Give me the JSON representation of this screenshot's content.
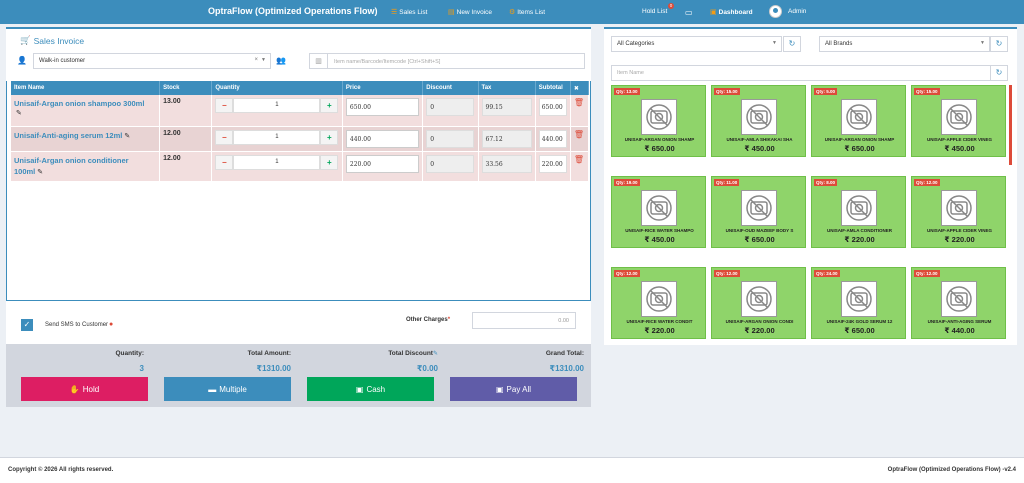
{
  "navbar": {
    "brand": "OptraFlow (Optimized Operations Flow)",
    "links": [
      {
        "label": "Sales List",
        "icon": "list-icon"
      },
      {
        "label": "New Invoice",
        "icon": "invoice-icon"
      },
      {
        "label": "Items List",
        "icon": "items-icon"
      }
    ],
    "hold_list": "Hold List",
    "hold_count": "0",
    "dashboard": "Dashboard",
    "user": "Admin"
  },
  "invoice": {
    "title": "Sales Invoice",
    "customer": "Walk-in customer",
    "clear_symbol": "×",
    "item_search_placeholder": "Item name/Barcode/Itemcode [Ctrl+Shift+S]",
    "columns": [
      "Item Name",
      "Stock",
      "Quantity",
      "Price",
      "Discount",
      "Tax",
      "Subtotal",
      "✖"
    ],
    "rows": [
      {
        "name": "Unisaif-Argan onion shampoo 300ml",
        "stock": "13.00",
        "qty": "1",
        "price": "650.00",
        "discount": "0",
        "tax": "99.15",
        "subtotal": "650.00"
      },
      {
        "name": "Unisaif-Anti-aging serum 12ml",
        "stock": "12.00",
        "qty": "1",
        "price": "440.00",
        "discount": "0",
        "tax": "67.12",
        "subtotal": "440.00"
      },
      {
        "name": "Unisaif-Argan onion conditioner 100ml",
        "stock": "12.00",
        "qty": "1",
        "price": "220.00",
        "discount": "0",
        "tax": "33.56",
        "subtotal": "220.00"
      }
    ],
    "send_sms": "Send SMS to Customer",
    "other_charges_label": "Other Charges",
    "other_charges_value": "0.00",
    "totals": {
      "quantity_label": "Quantity:",
      "quantity": "3",
      "total_amount_label": "Total Amount:",
      "total_amount": "₹1310.00",
      "total_discount_label": "Total Discount",
      "total_discount": "₹0.00",
      "grand_total_label": "Grand Total:",
      "grand_total": "₹1310.00"
    },
    "buttons": {
      "hold": "Hold",
      "multiple": "Multiple",
      "cash": "Cash",
      "pay_all": "Pay All"
    }
  },
  "catalog": {
    "category": "All Categories",
    "brand": "All Brands",
    "item_name_placeholder": "Item Name",
    "products": [
      {
        "qty": "Qty: 13.00",
        "name": "UNISAIF-ARGAN ONION SHAMP",
        "price": "₹ 650.00"
      },
      {
        "qty": "Qty: 15.00",
        "name": "UNISAIF-AMLA SHIKAKAI SHA",
        "price": "₹ 450.00"
      },
      {
        "qty": "Qty: 5.00",
        "name": "UNISAIF-ARGAN ONION SHAMP",
        "price": "₹ 650.00"
      },
      {
        "qty": "Qty: 15.00",
        "name": "UNISAIF-APPLE CIDER VINEG",
        "price": "₹ 450.00"
      },
      {
        "qty": "Qty: 19.00",
        "name": "UNISAIF-RICE WATER SHAMPO",
        "price": "₹ 450.00"
      },
      {
        "qty": "Qty: 11.00",
        "name": "UNISAIF-OUD MAZEEF BODY S",
        "price": "₹ 650.00"
      },
      {
        "qty": "Qty: 8.00",
        "name": "UNISAIF-AMLA CONDITIONER",
        "price": "₹ 220.00"
      },
      {
        "qty": "Qty: 12.00",
        "name": "UNISAIF-APPLE CIDER VINEG",
        "price": "₹ 220.00"
      },
      {
        "qty": "Qty: 12.00",
        "name": "UNISAIF-RICE WATER CONDIT",
        "price": "₹ 220.00"
      },
      {
        "qty": "Qty: 12.00",
        "name": "UNISAIF-ARGAN ONION CONDI",
        "price": "₹ 220.00"
      },
      {
        "qty": "Qty: 24.00",
        "name": "UNISAIF-24K GOLD SERUM 12",
        "price": "₹ 650.00"
      },
      {
        "qty": "Qty: 12.00",
        "name": "UNISAIF-ANTI-AGING SERUM",
        "price": "₹ 440.00"
      }
    ]
  },
  "footer": {
    "copyright": "Copyright © 2026 All rights reserved.",
    "version": "OptraFlow (Optimized Operations Flow) -v2.4"
  },
  "colors": {
    "primary": "#3c8dbc",
    "danger": "#dd4b39",
    "hold_button": "#dd1e63",
    "multiple_button": "#3c8dbc",
    "cash_button": "#00a65a",
    "pay_all_button": "#605ca8",
    "card_bg": "#8fd46a"
  }
}
